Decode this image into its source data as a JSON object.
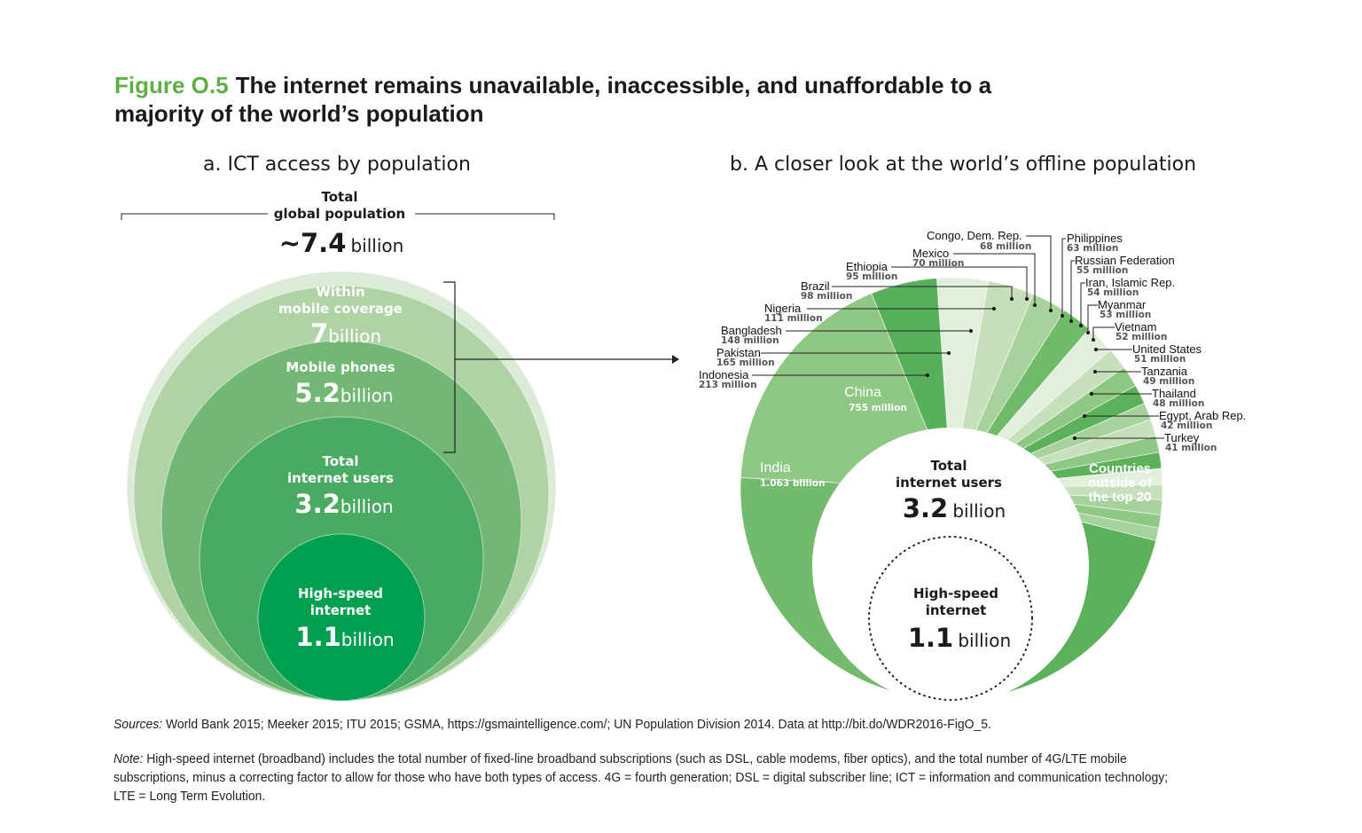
{
  "title": {
    "figure_label": "Figure O.5",
    "text": "The internet remains unavailable, inaccessible, and unaffordable to a",
    "text_line2": "majority of the world’s population"
  },
  "colors": {
    "accent": "#5cb046"
  },
  "chart_data": [
    {
      "type": "bubble",
      "title": "a. ICT access by population",
      "layout": "nested circles tangent at bottom",
      "total": {
        "label_line1": "Total",
        "label_line2": "global population",
        "value": "~7.4",
        "unit": "billion",
        "color": "#dcebd6"
      },
      "circles": [
        {
          "label_line1": "Within",
          "label_line2": "mobile coverage",
          "value": "7",
          "unit": "billion",
          "value_billion": 7,
          "color": "#afd3a5"
        },
        {
          "label_line1": "Mobile phones",
          "label_line2": "",
          "value": "5.2",
          "unit": "billion",
          "value_billion": 5.2,
          "color": "#72b874"
        },
        {
          "label_line1": "Total",
          "label_line2": "internet users",
          "value": "3.2",
          "unit": "billion",
          "value_billion": 3.2,
          "color": "#49aa62"
        },
        {
          "label_line1": "High-speed",
          "label_line2": "internet",
          "value": "1.1",
          "unit": "billion",
          "value_billion": 1.1,
          "color": "#00a050"
        }
      ]
    },
    {
      "type": "pie",
      "style": "donut with offset white center",
      "title": "b. A closer look at the world’s offline population",
      "unit": "million",
      "slices": [
        {
          "name": "Pakistan",
          "label": "165 million",
          "value": 165,
          "color": "#e2efdc"
        },
        {
          "name": "Bangladesh",
          "label": "148 million",
          "value": 148,
          "color": "#c6e0bb"
        },
        {
          "name": "Nigeria",
          "label": "111 million",
          "value": 111,
          "color": "#a8d29b"
        },
        {
          "name": "Brazil",
          "label": "98 million",
          "value": 98,
          "color": "#6fbb69"
        },
        {
          "name": "Ethiopia",
          "label": "95 million",
          "value": 95,
          "color": "#e2efdc"
        },
        {
          "name": "Mexico",
          "label": "70 million",
          "value": 70,
          "color": "#c6e0bb"
        },
        {
          "name": "Congo, Dem. Rep.",
          "label": "68 million",
          "value": 68,
          "color": "#8fc784"
        },
        {
          "name": "Philippines",
          "label": "63 million",
          "value": 63,
          "color": "#5cb15a"
        },
        {
          "name": "Russian Federation",
          "label": "55 million",
          "value": 55,
          "color": "#a8d29b"
        },
        {
          "name": "Iran, Islamic Rep.",
          "label": "54 million",
          "value": 54,
          "color": "#c6e0bb"
        },
        {
          "name": "Myanmar",
          "label": "53 million",
          "value": 53,
          "color": "#8fc784"
        },
        {
          "name": "Vietnam",
          "label": "52 million",
          "value": 52,
          "color": "#5cb15a"
        },
        {
          "name": "United States",
          "label": "51 million",
          "value": 51,
          "color": "#e2efdc"
        },
        {
          "name": "Tanzania",
          "label": "49 million",
          "value": 49,
          "color": "#c6e0bb"
        },
        {
          "name": "Thailand",
          "label": "48 million",
          "value": 48,
          "color": "#a8d29b"
        },
        {
          "name": "Egypt, Arab Rep.",
          "label": "42 million",
          "value": 42,
          "color": "#8fc784"
        },
        {
          "name": "Turkey",
          "label": "41 million",
          "value": 41,
          "color": "#a8d29b"
        },
        {
          "name": "Countries outside of the top 20",
          "label": "",
          "value": 906,
          "color": "#5cb15a"
        },
        {
          "name": "India",
          "label": "1.063 billion",
          "value": 1063,
          "color": "#72ba6c"
        },
        {
          "name": "China",
          "label": "755 million",
          "value": 755,
          "color": "#8fc784"
        },
        {
          "name": "Indonesia",
          "label": "213 million",
          "value": 213,
          "color": "#57b05a"
        }
      ],
      "inner_labels": {
        "china": "China",
        "china_value": "755 million",
        "india": "India",
        "india_value": "1.063 billion",
        "outside_line1": "Countries",
        "outside_line2": "outside of",
        "outside_line3": "the top 20"
      },
      "center": {
        "label_line1": "Total",
        "label_line2": "internet users",
        "value": "3.2",
        "unit": "billion"
      },
      "dotted_circle": {
        "label_line1": "High-speed",
        "label_line2": "internet",
        "value": "1.1",
        "unit": "billion"
      }
    }
  ],
  "footer": {
    "sources_label": "Sources:",
    "sources_text": "World Bank 2015; Meeker 2015; ITU 2015; GSMA, https://gsmaintelligence.com/; UN Population Division 2014. Data at http://bit.do/WDR2016-FigO_5.",
    "note_label": "Note:",
    "note_text": "High-speed internet (broadband) includes the total number of fixed-line broadband subscriptions (such as DSL, cable modems, fiber optics), and the total number of 4G/LTE mobile subscriptions, minus a correcting factor to allow for those who have both types of access. 4G = fourth generation; DSL = digital subscriber line; ICT = information and communication technology; LTE = Long Term Evolution."
  }
}
